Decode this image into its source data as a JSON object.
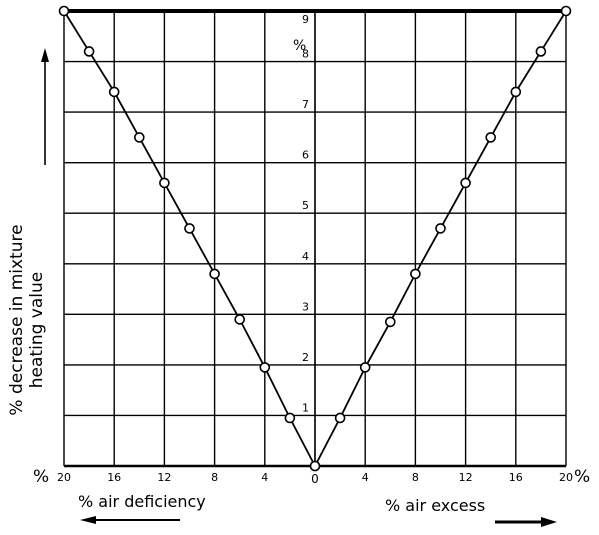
{
  "chart_data": {
    "type": "line",
    "title": "",
    "ylabel_line1": "% decrease in mixture",
    "ylabel_line2": "heating value",
    "xlabel_left": "% air deficiency",
    "xlabel_right": "% air excess",
    "x_units_left": "%",
    "x_units_right": "%",
    "y_unit": "%",
    "x_ticks_left": [
      "20",
      "16",
      "12",
      "8",
      "4"
    ],
    "x_tick_zero": "0",
    "x_ticks_right": [
      "4",
      "8",
      "12",
      "16",
      "20"
    ],
    "y_ticks": [
      "1",
      "2",
      "3",
      "4",
      "5",
      "6",
      "7",
      "8",
      "9"
    ],
    "xlim": [
      -20,
      20
    ],
    "ylim": [
      0,
      9
    ],
    "grid": true,
    "series": [
      {
        "x": [
          -20,
          -18,
          -16,
          -14,
          -12,
          -10,
          -8,
          -6,
          -4,
          -2,
          0
        ],
        "y": [
          9.0,
          8.2,
          7.4,
          6.5,
          5.6,
          4.7,
          3.8,
          2.9,
          1.95,
          0.95,
          0
        ]
      },
      {
        "x": [
          0,
          2,
          4,
          6,
          8,
          10,
          12,
          14,
          16,
          18,
          20
        ],
        "y": [
          0,
          0.95,
          1.95,
          2.85,
          3.8,
          4.7,
          5.6,
          6.5,
          7.4,
          8.2,
          9.0
        ]
      }
    ]
  }
}
